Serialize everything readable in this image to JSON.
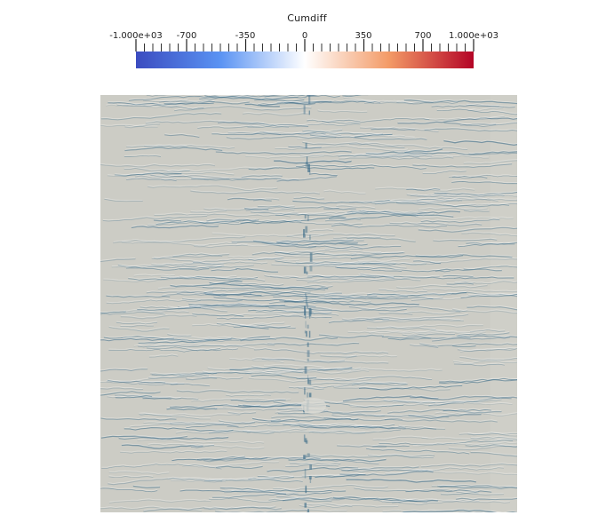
{
  "scalar_bar": {
    "title": "Cumdiff",
    "labels": [
      "-1.000e+03",
      "-700",
      "-350",
      "0",
      "350",
      "700",
      "1.000e+03"
    ],
    "label_values": [
      -1000,
      -700,
      -350,
      0,
      350,
      700,
      1000
    ],
    "range": [
      -1000,
      1000
    ],
    "colormap": "Cool to Warm",
    "colors": {
      "min": "#3b4cc0",
      "low": "#5a93f3",
      "mid": "#ffffff",
      "high": "#f39a66",
      "max": "#b40426"
    }
  },
  "render_view": {
    "background": "#ffffff",
    "surface_color": "#ccccc5",
    "stripe_color": "#3f6e8a"
  }
}
